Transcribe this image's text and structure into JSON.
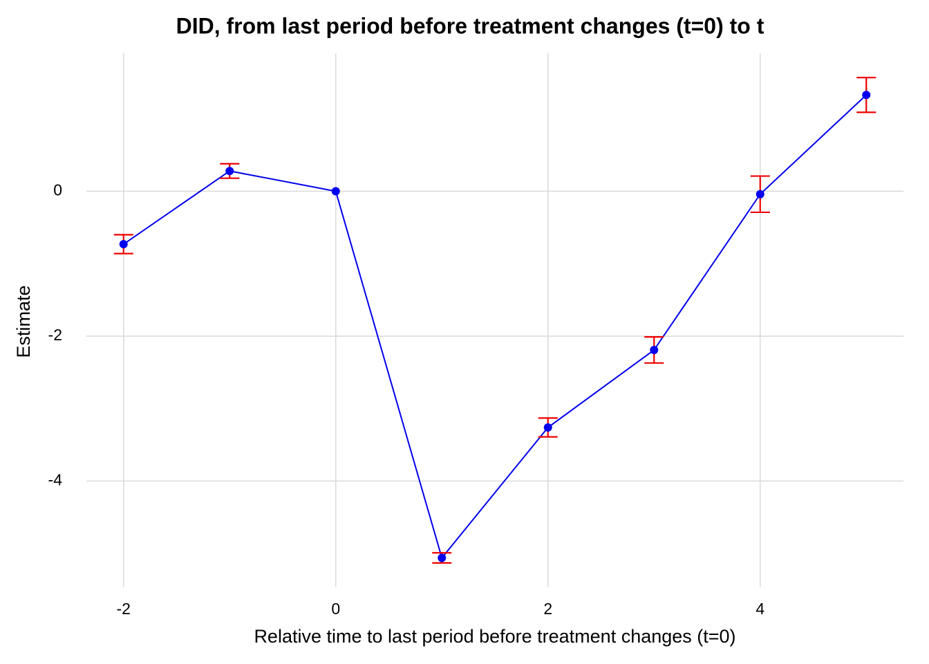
{
  "chart_data": {
    "type": "line",
    "title": "DID, from last period before treatment changes (t=0) to t",
    "x_label": "Relative time to last period before treatment changes (t=0)",
    "y_label": "Estimate",
    "x": [
      -2,
      -1,
      0,
      1,
      2,
      3,
      4,
      5
    ],
    "values": [
      -0.73,
      0.28,
      0,
      -5.06,
      -3.26,
      -2.19,
      -0.04,
      1.33
    ],
    "errors": [
      0.13,
      0.1,
      null,
      0.07,
      0.13,
      0.18,
      0.25,
      0.24
    ],
    "color": "#0000ee",
    "error_color": "#ee0000",
    "xlim": [
      -2.35,
      5.35
    ],
    "xticks": [
      -2,
      0,
      2,
      4
    ],
    "ylim": [
      -5.465,
      1.905
    ],
    "yticks": [
      0,
      -2,
      -4
    ],
    "grid": true
  }
}
